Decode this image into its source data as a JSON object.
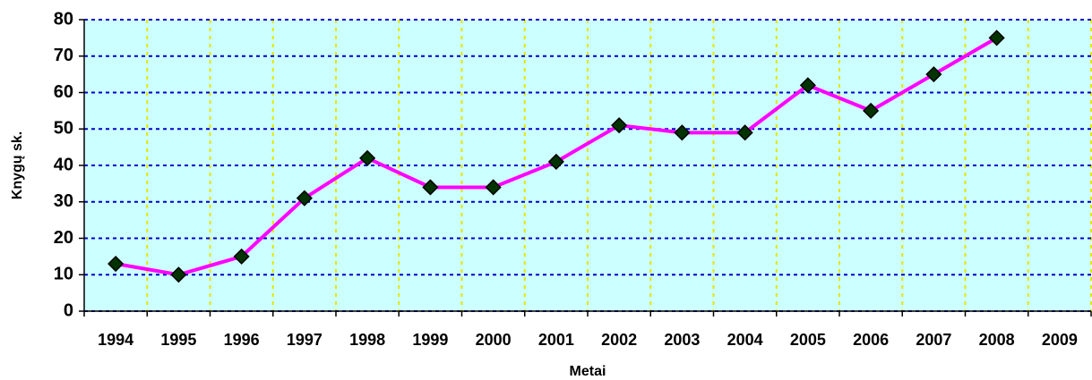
{
  "chart_data": {
    "type": "line",
    "xlabel": "Metai",
    "ylabel": "Knygų sk.",
    "categories": [
      "1994",
      "1995",
      "1996",
      "1997",
      "1998",
      "1999",
      "2000",
      "2001",
      "2002",
      "2003",
      "2004",
      "2005",
      "2006",
      "2007",
      "2008",
      "2009"
    ],
    "values": [
      13,
      10,
      15,
      31,
      42,
      34,
      34,
      41,
      51,
      49,
      49,
      62,
      55,
      65,
      75,
      null
    ],
    "color": "#ff00ff",
    "marker_color": "#003300",
    "plot_background": "#ccffff",
    "grid": true,
    "grid_color_y": "#0000cc",
    "grid_color_x": "#e6e600",
    "ylim": [
      0,
      80
    ],
    "yticks": [
      0,
      10,
      20,
      30,
      40,
      50,
      60,
      70,
      80
    ]
  }
}
